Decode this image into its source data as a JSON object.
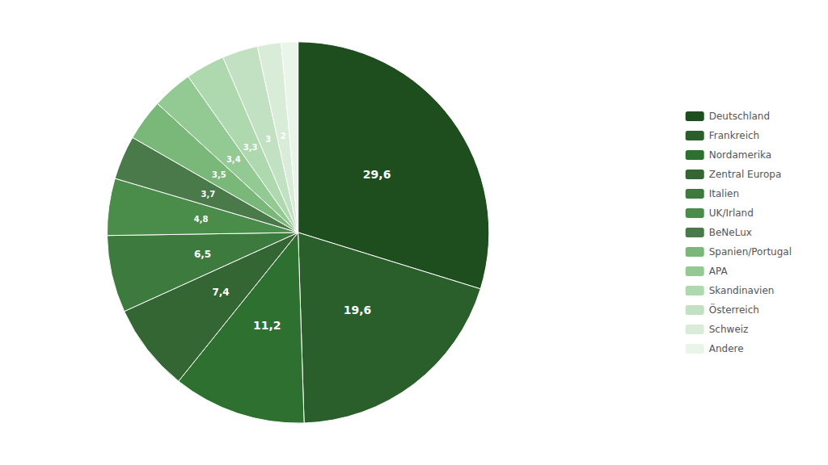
{
  "chart_data": {
    "type": "pie",
    "categories": [
      "Deutschland",
      "Frankreich",
      "Nordamerika",
      "Zentral Europa",
      "Italien",
      "UK/Irland",
      "BeNeLux",
      "Spanien/Portugal",
      "APA",
      "Skandinavien",
      "Österreich",
      "Schweiz",
      "Andere"
    ],
    "values": [
      29.6,
      19.6,
      11.2,
      7.4,
      6.5,
      4.8,
      3.7,
      3.5,
      3.4,
      3.3,
      3.0,
      2.0,
      1.4
    ],
    "value_labels": [
      "29,6",
      "19,6",
      "11,2",
      "7,4",
      "6,5",
      "4,8",
      "3,7",
      "3,5",
      "3,4",
      "3,3",
      "3",
      "2",
      null
    ],
    "colors": [
      "#1e4d1e",
      "#2a5e2a",
      "#2e7030",
      "#336633",
      "#3d7a3d",
      "#4a8c4a",
      "#4a7a4a",
      "#7ab87a",
      "#93c993",
      "#aed9ae",
      "#c2e0c2",
      "#d8ecd8",
      "#e8f5e8"
    ],
    "data_labels": true,
    "legend": "right"
  }
}
